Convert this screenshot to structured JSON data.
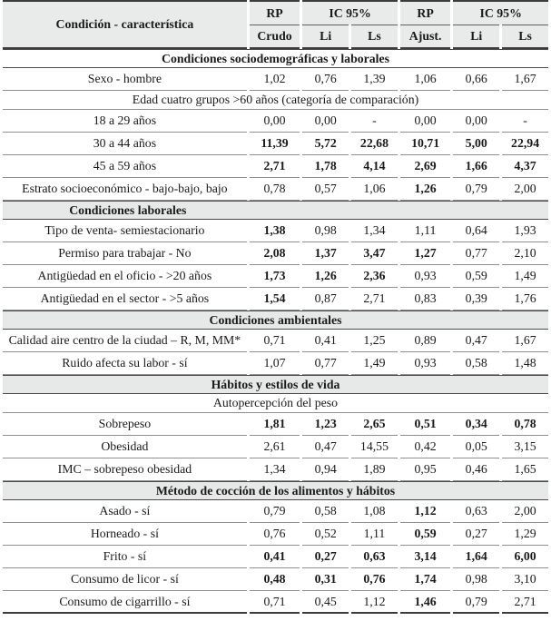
{
  "colors": {
    "header_bg": "#e9ebea",
    "section_bg": "#e7e9e8",
    "rule_dark": "#3c3c3c",
    "rule_light": "#8f8f8f",
    "text": "#1a1a1a"
  },
  "table": {
    "header": {
      "col1": "Condición - característica",
      "groups": [
        "RP",
        "IC 95%",
        "RP",
        "IC 95%"
      ],
      "subs": [
        "Crudo",
        "Li",
        "Ls",
        "Ajust.",
        "Li",
        "Ls"
      ]
    },
    "rows": [
      {
        "type": "section",
        "label": "Condiciones sociodemográficas y laborales",
        "shaded": false,
        "narrow": false
      },
      {
        "type": "data",
        "label": "Sexo - hombre",
        "values": [
          "1,02",
          "0,76",
          "1,39",
          "1,06",
          "0,66",
          "1,67"
        ],
        "bold": [
          false,
          false,
          false,
          false,
          false,
          false
        ]
      },
      {
        "type": "subsection",
        "label": "Edad cuatro grupos >60 años (categoría de comparación)"
      },
      {
        "type": "data",
        "label": "18 a 29 años",
        "values": [
          "0,00",
          "0,00",
          "-",
          "0,00",
          "0,00",
          "-"
        ],
        "bold": [
          false,
          false,
          false,
          false,
          false,
          false
        ]
      },
      {
        "type": "data",
        "label": "30 a 44 años",
        "values": [
          "11,39",
          "5,72",
          "22,68",
          "10,71",
          "5,00",
          "22,94"
        ],
        "bold": [
          true,
          true,
          true,
          true,
          true,
          true
        ]
      },
      {
        "type": "data",
        "label": "45 a 59 años",
        "values": [
          "2,71",
          "1,78",
          "4,14",
          "2,69",
          "1,66",
          "4,37"
        ],
        "bold": [
          true,
          true,
          true,
          true,
          true,
          true
        ]
      },
      {
        "type": "data",
        "label": "Estrato socioeconómico - bajo-bajo, bajo",
        "values": [
          "0,78",
          "0,57",
          "1,06",
          "1,26",
          "0,79",
          "2,00"
        ],
        "bold": [
          false,
          false,
          false,
          true,
          false,
          false
        ]
      },
      {
        "type": "section",
        "label": "Condiciones laborales",
        "shaded": true,
        "narrow": true
      },
      {
        "type": "data",
        "label": "Tipo de venta- semiestacionario",
        "values": [
          "1,38",
          "0,98",
          "1,34",
          "1,11",
          "0,64",
          "1,93"
        ],
        "bold": [
          true,
          false,
          false,
          false,
          false,
          false
        ]
      },
      {
        "type": "data",
        "label": "Permiso para trabajar - No",
        "values": [
          "2,08",
          "1,37",
          "3,47",
          "1,27",
          "0,77",
          "2,10"
        ],
        "bold": [
          true,
          true,
          true,
          true,
          false,
          false
        ]
      },
      {
        "type": "data",
        "label": "Antigüedad en el oficio - >20 años",
        "values": [
          "1,73",
          "1,26",
          "2,36",
          "0,93",
          "0,59",
          "1,49"
        ],
        "bold": [
          true,
          true,
          true,
          false,
          false,
          false
        ]
      },
      {
        "type": "data",
        "label": "Antigüedad en el sector - >5 años",
        "values": [
          "1,54",
          "0,87",
          "2,71",
          "0,83",
          "0,39",
          "1,76"
        ],
        "bold": [
          true,
          false,
          false,
          false,
          false,
          false
        ]
      },
      {
        "type": "section",
        "label": "Condiciones ambientales",
        "shaded": true,
        "narrow": false
      },
      {
        "type": "data",
        "label": "Calidad aire centro de la ciudad – R, M, MM*",
        "values": [
          "0,71",
          "0,41",
          "1,25",
          "0,89",
          "0,47",
          "1,67"
        ],
        "bold": [
          false,
          false,
          false,
          false,
          false,
          false
        ]
      },
      {
        "type": "data",
        "label": "Ruido afecta su labor - sí",
        "values": [
          "1,07",
          "0,77",
          "1,49",
          "0,93",
          "0,58",
          "1,48"
        ],
        "bold": [
          false,
          false,
          false,
          false,
          false,
          false
        ]
      },
      {
        "type": "section",
        "label": "Hábitos y estilos de vida",
        "shaded": true,
        "narrow": false
      },
      {
        "type": "subsection",
        "label": "Autopercepción del peso"
      },
      {
        "type": "data",
        "label": "Sobrepeso",
        "values": [
          "1,81",
          "1,23",
          "2,65",
          "0,51",
          "0,34",
          "0,78"
        ],
        "bold": [
          true,
          true,
          true,
          true,
          true,
          true
        ]
      },
      {
        "type": "data",
        "label": "Obesidad",
        "values": [
          "2,61",
          "0,47",
          "14,55",
          "0,42",
          "0,05",
          "3,15"
        ],
        "bold": [
          false,
          false,
          false,
          false,
          false,
          false
        ]
      },
      {
        "type": "data",
        "label": "IMC – sobrepeso obesidad",
        "values": [
          "1,34",
          "0,94",
          "1,89",
          "0,95",
          "0,46",
          "1,65"
        ],
        "bold": [
          false,
          false,
          false,
          false,
          false,
          false
        ]
      },
      {
        "type": "section",
        "label": "Método de cocción de los alimentos y hábitos",
        "shaded": true,
        "narrow": false
      },
      {
        "type": "data",
        "label": "Asado - sí",
        "values": [
          "0,79",
          "0,58",
          "1,08",
          "1,12",
          "0,63",
          "2,00"
        ],
        "bold": [
          false,
          false,
          false,
          true,
          false,
          false
        ]
      },
      {
        "type": "data",
        "label": "Horneado - sí",
        "values": [
          "0,76",
          "0,52",
          "1,11",
          "0,59",
          "0,27",
          "1,29"
        ],
        "bold": [
          false,
          false,
          false,
          true,
          false,
          false
        ]
      },
      {
        "type": "data",
        "label": "Frito - sí",
        "values": [
          "0,41",
          "0,27",
          "0,63",
          "3,14",
          "1,64",
          "6,00"
        ],
        "bold": [
          true,
          true,
          true,
          true,
          true,
          true
        ]
      },
      {
        "type": "data",
        "label": "Consumo de licor - sí",
        "values": [
          "0,48",
          "0,31",
          "0,76",
          "1,74",
          "0,98",
          "3,10"
        ],
        "bold": [
          true,
          true,
          true,
          true,
          false,
          false
        ]
      },
      {
        "type": "data",
        "label": "Consumo de cigarrillo - sí",
        "values": [
          "0,71",
          "0,45",
          "1,12",
          "1,46",
          "0,79",
          "2,71"
        ],
        "bold": [
          false,
          false,
          false,
          true,
          false,
          false
        ]
      }
    ]
  }
}
